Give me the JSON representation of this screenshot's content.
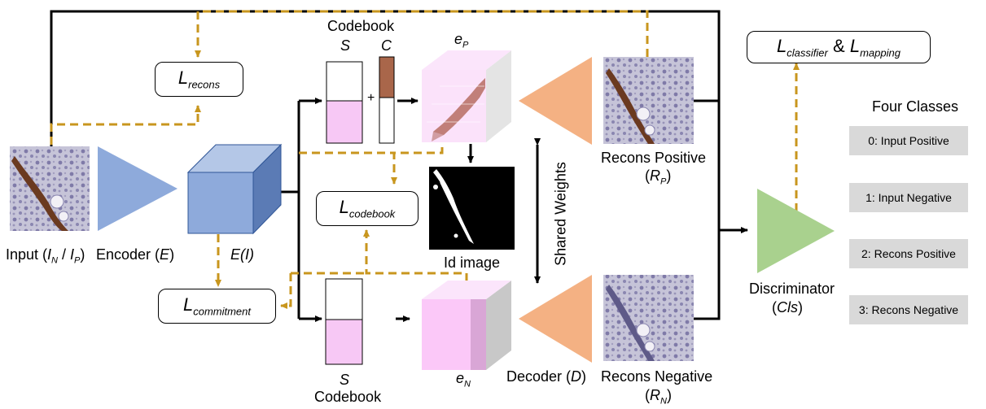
{
  "codebook_top": {
    "title": "Codebook",
    "s": "S",
    "c": "C",
    "plus": "+"
  },
  "codebook_bottom": {
    "title": "Codebook",
    "s": "S"
  },
  "e_p": {
    "base": "e",
    "sub": "P"
  },
  "e_n": {
    "base": "e",
    "sub": "N"
  },
  "losses": {
    "recons": {
      "base": "L",
      "sub": "recons"
    },
    "codebook": {
      "base": "L",
      "sub": "codebook"
    },
    "commitment": {
      "base": "L",
      "sub": "commitment"
    },
    "classifier": {
      "base": "L",
      "sub": "classifier",
      "amp": "&",
      "base2": "L",
      "sub2": "mapping"
    }
  },
  "labels": {
    "input": {
      "pre": "Input (",
      "a": "I",
      "a_sub": "N",
      "slash": " / ",
      "b": "I",
      "b_sub": "P",
      "post": ")"
    },
    "encoder": {
      "pre": "Encoder (",
      "sym": "E",
      "post": ")"
    },
    "ei": "E(I)",
    "id_image": "Id image",
    "shared_weights": "Shared Weights",
    "recons_positive": "Recons Positive",
    "rp": {
      "pre": "(",
      "sym": "R",
      "sub": "P",
      "post": ")"
    },
    "recons_negative": "Recons Negative",
    "rn": {
      "pre": "(",
      "sym": "R",
      "sub": "N",
      "post": ")"
    },
    "decoder": {
      "pre": "Decoder (",
      "sym": "D",
      "post": ")"
    },
    "discriminator": "Discriminator",
    "cls": {
      "pre": "(",
      "sym": "Cls",
      "post": ")"
    }
  },
  "four_classes": {
    "title": "Four Classes",
    "items": [
      "0: Input Positive",
      "1: Input Negative",
      "2: Recons Positive",
      "3: Recons Negative"
    ]
  },
  "colors": {
    "loss_arrow": "#c8961e",
    "encoder_triangle": "#8eaadb",
    "cube": "#8eaadb",
    "decoder_triangle": "#f4b183",
    "discriminator_triangle": "#a9d18e",
    "codebook_fill": "#f7c8f5",
    "code_brown": "#a9664a",
    "class_box": "#d9d9d9"
  }
}
